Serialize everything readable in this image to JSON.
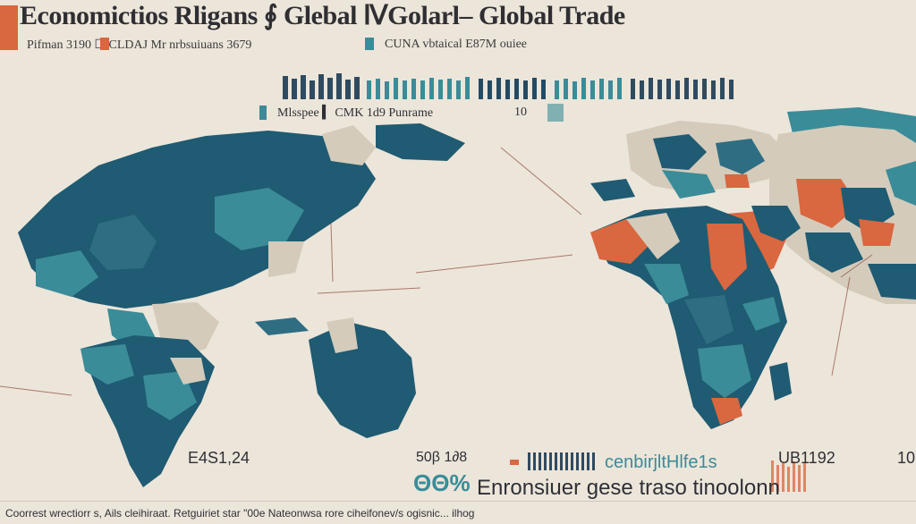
{
  "header": {
    "title": "Economictios Rligans ∮ Glebal ⅣGolarl– Global Trade",
    "subtitle_left": "Pifman 3190 ☐ CLDAJ Mr nrbsuiuans 3679",
    "subtitle_right": "CUNA vbtaical E87M ouiee"
  },
  "legend_row": {
    "label": "Mlsspee ▍ CMK 1d9 Punrame",
    "value": "10"
  },
  "bottom": {
    "left_value": "E4S1,24",
    "code": "50β 1∂8",
    "percent": "ΘΘ%",
    "big_label": "Enronsiuer gese traso tinoolonn",
    "teal_label": "cenbirjltHlfe1s",
    "right_value": "UB1192",
    "edge_value": "10"
  },
  "footer": {
    "text": "Coorrest wrectiorr s, Ails cleihiraat. Retguiriet star \"00e Nateonwsa rore ciheifonev/s ogisnic... ilhog"
  },
  "colors": {
    "background": "#ece5da",
    "teal": "#3a8c98",
    "deep_teal": "#1f5b72",
    "navy": "#244a63",
    "orange": "#d9673f",
    "sand": "#d4cbbb"
  }
}
